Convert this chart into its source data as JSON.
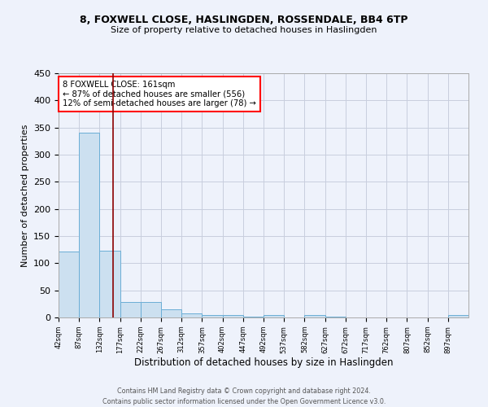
{
  "title1": "8, FOXWELL CLOSE, HASLINGDEN, ROSSENDALE, BB4 6TP",
  "title2": "Size of property relative to detached houses in Haslingden",
  "xlabel": "Distribution of detached houses by size in Haslingden",
  "ylabel": "Number of detached properties",
  "bar_edges": [
    42,
    87,
    132,
    177,
    222,
    267,
    312,
    357,
    402,
    447,
    492,
    537,
    582,
    627,
    672,
    717,
    762,
    807,
    852,
    897,
    942
  ],
  "bar_heights": [
    122,
    340,
    123,
    28,
    28,
    15,
    8,
    5,
    4,
    2,
    4,
    0,
    5,
    1,
    0,
    0,
    0,
    0,
    0,
    4
  ],
  "bar_color": "#cce0f0",
  "bar_edge_color": "#6baed6",
  "vline_x": 161,
  "vline_color": "#8b0000",
  "annotation_line1": "8 FOXWELL CLOSE: 161sqm",
  "annotation_line2": "← 87% of detached houses are smaller (556)",
  "annotation_line3": "12% of semi-detached houses are larger (78) →",
  "annotation_box_color": "white",
  "annotation_box_edge": "red",
  "bg_color": "#eef2fb",
  "grid_color": "#c8cede",
  "footer": "Contains HM Land Registry data © Crown copyright and database right 2024.\nContains public sector information licensed under the Open Government Licence v3.0.",
  "yticks": [
    0,
    50,
    100,
    150,
    200,
    250,
    300,
    350,
    400,
    450
  ],
  "xlim": [
    42,
    942
  ],
  "ylim": [
    0,
    450
  ]
}
